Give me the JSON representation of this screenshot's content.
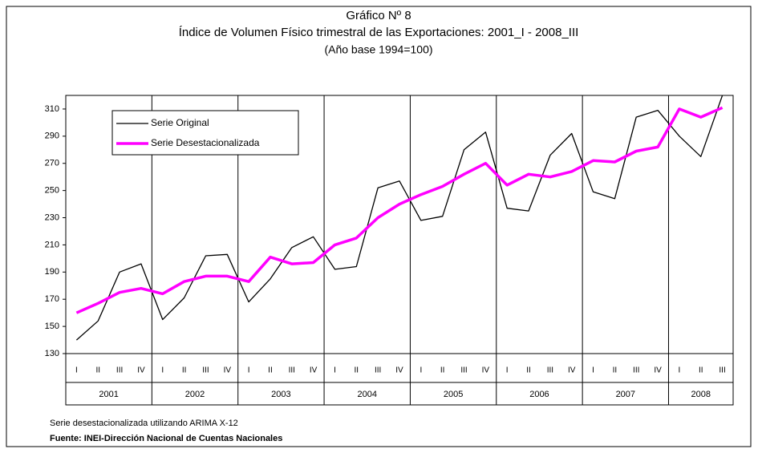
{
  "chart_data": {
    "type": "line",
    "title": "Gráfico Nº 8",
    "subtitle": "Índice de Volumen Físico trimestral de las Exportaciones: 2001_I - 2008_III",
    "note_top": "(Año base 1994=100)",
    "categories": [
      "I",
      "II",
      "III",
      "IV",
      "I",
      "II",
      "III",
      "IV",
      "I",
      "II",
      "III",
      "IV",
      "I",
      "II",
      "III",
      "IV",
      "I",
      "II",
      "III",
      "IV",
      "I",
      "II",
      "III",
      "IV",
      "I",
      "II",
      "III",
      "IV",
      "I",
      "II",
      "III"
    ],
    "year_groups": [
      "2001",
      "2002",
      "2003",
      "2004",
      "2005",
      "2006",
      "2007",
      "2008"
    ],
    "series": [
      {
        "name": "Serie Original",
        "color": "#000000",
        "values": [
          140,
          154,
          190,
          196,
          155,
          171,
          202,
          203,
          168,
          185,
          208,
          216,
          192,
          194,
          252,
          257,
          228,
          231,
          280,
          293,
          237,
          235,
          276,
          292,
          249,
          244,
          304,
          309,
          290,
          275,
          320
        ]
      },
      {
        "name": "Serie Desestacionalizada",
        "color": "#ff00ff",
        "values": [
          160,
          167,
          175,
          178,
          174,
          183,
          187,
          187,
          183,
          201,
          196,
          197,
          210,
          215,
          230,
          240,
          247,
          253,
          262,
          270,
          254,
          262,
          260,
          264,
          272,
          271,
          279,
          282,
          310,
          304,
          311
        ]
      }
    ],
    "ylim": [
      130,
      320
    ],
    "yticks": [
      130,
      150,
      170,
      190,
      210,
      230,
      250,
      270,
      290,
      310
    ],
    "footnotes": [
      "Serie desestacionalizada utilizando ARIMA X-12",
      "Fuente: INEI-Dirección Nacional de Cuentas Nacionales"
    ]
  }
}
